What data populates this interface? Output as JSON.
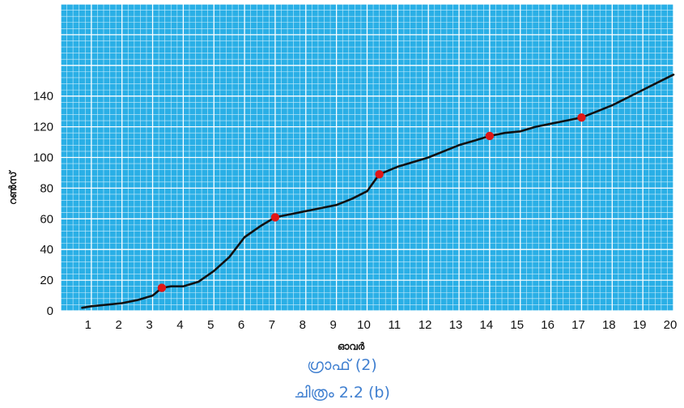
{
  "chart_data": {
    "type": "line",
    "xlabel": "ഓവർ",
    "ylabel": "റൺസ്",
    "xlim": [
      0,
      20
    ],
    "ylim": [
      0,
      200
    ],
    "x_ticks": [
      1,
      2,
      3,
      4,
      5,
      6,
      7,
      8,
      9,
      10,
      11,
      12,
      13,
      14,
      15,
      16,
      17,
      18,
      19,
      20
    ],
    "y_ticks": [
      0,
      20,
      40,
      60,
      80,
      100,
      120,
      140
    ],
    "grid": true,
    "series": [
      {
        "color": "#111111",
        "x": [
          0.7,
          1.0,
          1.5,
          2.0,
          2.5,
          3.0,
          3.3,
          3.6,
          4.0,
          4.5,
          5.0,
          5.5,
          6.0,
          6.5,
          7.0,
          7.5,
          8.0,
          8.5,
          9.0,
          9.5,
          10.0,
          10.4,
          11.0,
          11.5,
          12.0,
          12.5,
          13.0,
          13.5,
          14.0,
          14.5,
          15.0,
          15.5,
          16.0,
          16.5,
          17.0,
          17.5,
          18.0,
          18.5,
          19.0,
          19.5,
          20.0
        ],
        "y": [
          2,
          3,
          4,
          5,
          7,
          10,
          15,
          16,
          16,
          19,
          26,
          35,
          48,
          55,
          61,
          63,
          65,
          67,
          69,
          73,
          78,
          89,
          94,
          97,
          100,
          104,
          108,
          111,
          114,
          116,
          117,
          120,
          122,
          124,
          126,
          130,
          134,
          139,
          144,
          149,
          154
        ]
      }
    ],
    "highlighted_points": {
      "color": "#e01616",
      "x": [
        3.3,
        7.0,
        10.4,
        14.0,
        17.0
      ],
      "y": [
        15,
        61,
        89,
        114,
        126
      ]
    }
  },
  "captions": {
    "graph": "ഗ്രാഫ് (2)",
    "figure": "ചിത്രം 2.2 (b)"
  },
  "colors": {
    "grid_background": "#2aafe6",
    "grid_minor": "#cdeefb",
    "grid_major": "#ffffff",
    "line": "#111111",
    "highlight": "#e01616"
  }
}
